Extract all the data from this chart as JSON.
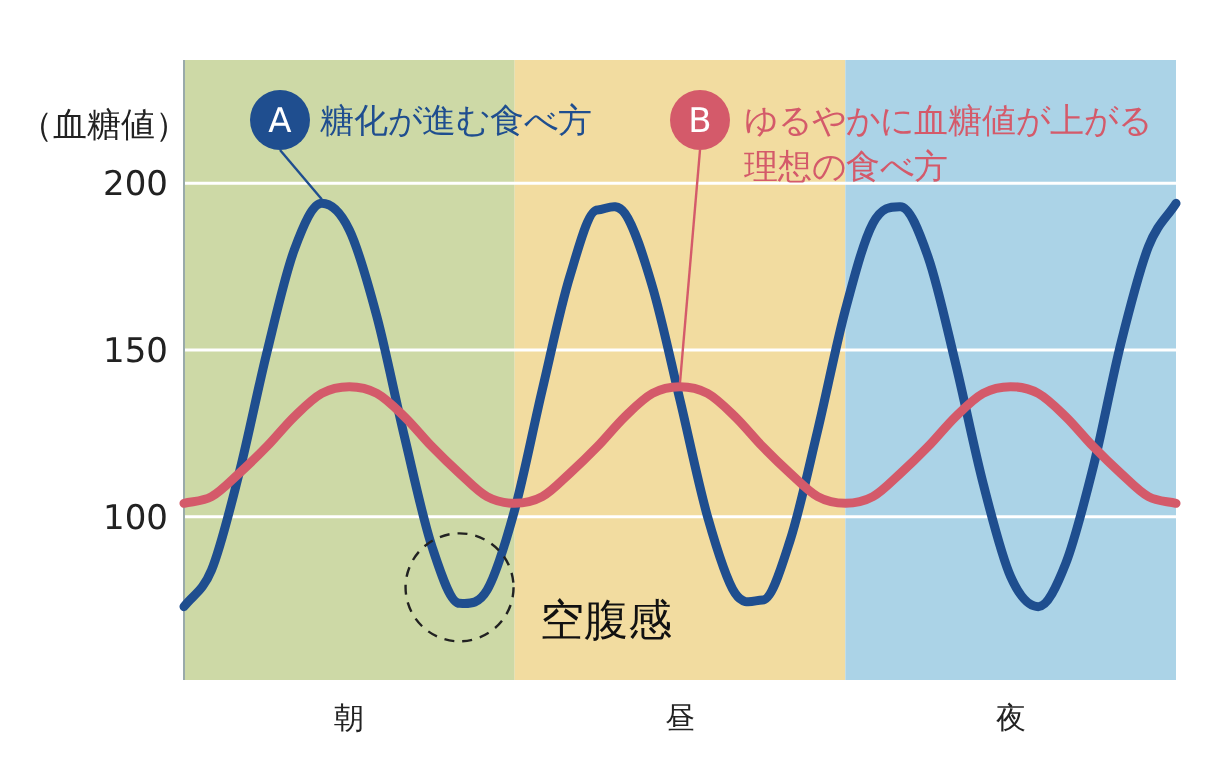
{
  "chart_data": {
    "type": "line",
    "ylabel": "（血糖値）",
    "ylim": [
      51,
      237
    ],
    "yticks": [
      100,
      150,
      200
    ],
    "grid": "y",
    "legend": "top",
    "line_style": "solid",
    "marker": "none",
    "categories": [
      null,
      null,
      null,
      null,
      null,
      null,
      "朝",
      null,
      null,
      null,
      null,
      null,
      null,
      null,
      null,
      null,
      null,
      null,
      "昼",
      null,
      null,
      null,
      null,
      null,
      null,
      null,
      null,
      null,
      null,
      null,
      "夜",
      null,
      null,
      null,
      null,
      null,
      null
    ],
    "annotations": [
      "A",
      {
        "text": "B",
        "x": "昼",
        "y": 139
      },
      "空腹感"
    ],
    "series": [
      {
        "name": "糖化が進む食べ方",
        "color": "#1f4e8f",
        "values": [
          73,
          84,
          113,
          149,
          180,
          194,
          186,
          160,
          124,
          91,
          74,
          78,
          102,
          138,
          172,
          192,
          191,
          169,
          135,
          100,
          77,
          75,
          93,
          126,
          162,
          188,
          193,
          178,
          146,
          110,
          82,
          73,
          86,
          115,
          152,
          181,
          194
        ]
      },
      {
        "name": "ゆるやかに血糖値が上がる理想の食べ方",
        "color": "#d45a6a",
        "values": [
          104,
          106,
          113,
          121,
          130,
          137,
          139,
          137,
          130,
          121,
          113,
          106,
          104,
          106,
          113,
          121,
          130,
          137,
          139,
          137,
          130,
          121,
          113,
          106,
          104,
          106,
          113,
          121,
          130,
          137,
          139,
          137,
          130,
          121,
          113,
          106,
          104
        ]
      }
    ]
  }
}
